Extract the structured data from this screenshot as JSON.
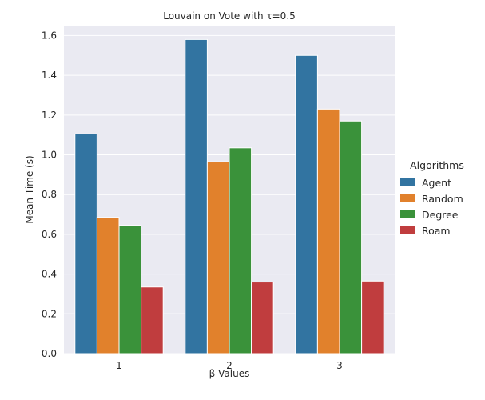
{
  "chart_data": {
    "type": "bar",
    "title": "Louvain on Vote with τ=0.5",
    "xlabel": "β Values",
    "ylabel": "Mean Time (s)",
    "categories": [
      "1",
      "2",
      "3"
    ],
    "ylim": [
      0,
      1.65
    ],
    "yticks": [
      0.0,
      0.2,
      0.4,
      0.6,
      0.8,
      1.0,
      1.2,
      1.4,
      1.6
    ],
    "grid": true,
    "legend": {
      "title": "Algorithms",
      "placement": "right"
    },
    "series": [
      {
        "name": "Agent",
        "color": "#3274a1",
        "values": [
          1.105,
          1.58,
          1.5
        ]
      },
      {
        "name": "Random",
        "color": "#e1812c",
        "values": [
          0.685,
          0.965,
          1.23
        ]
      },
      {
        "name": "Degree",
        "color": "#3a923a",
        "values": [
          0.645,
          1.035,
          1.17
        ]
      },
      {
        "name": "Roam",
        "color": "#c03d3e",
        "values": [
          0.335,
          0.36,
          0.365
        ]
      }
    ]
  }
}
